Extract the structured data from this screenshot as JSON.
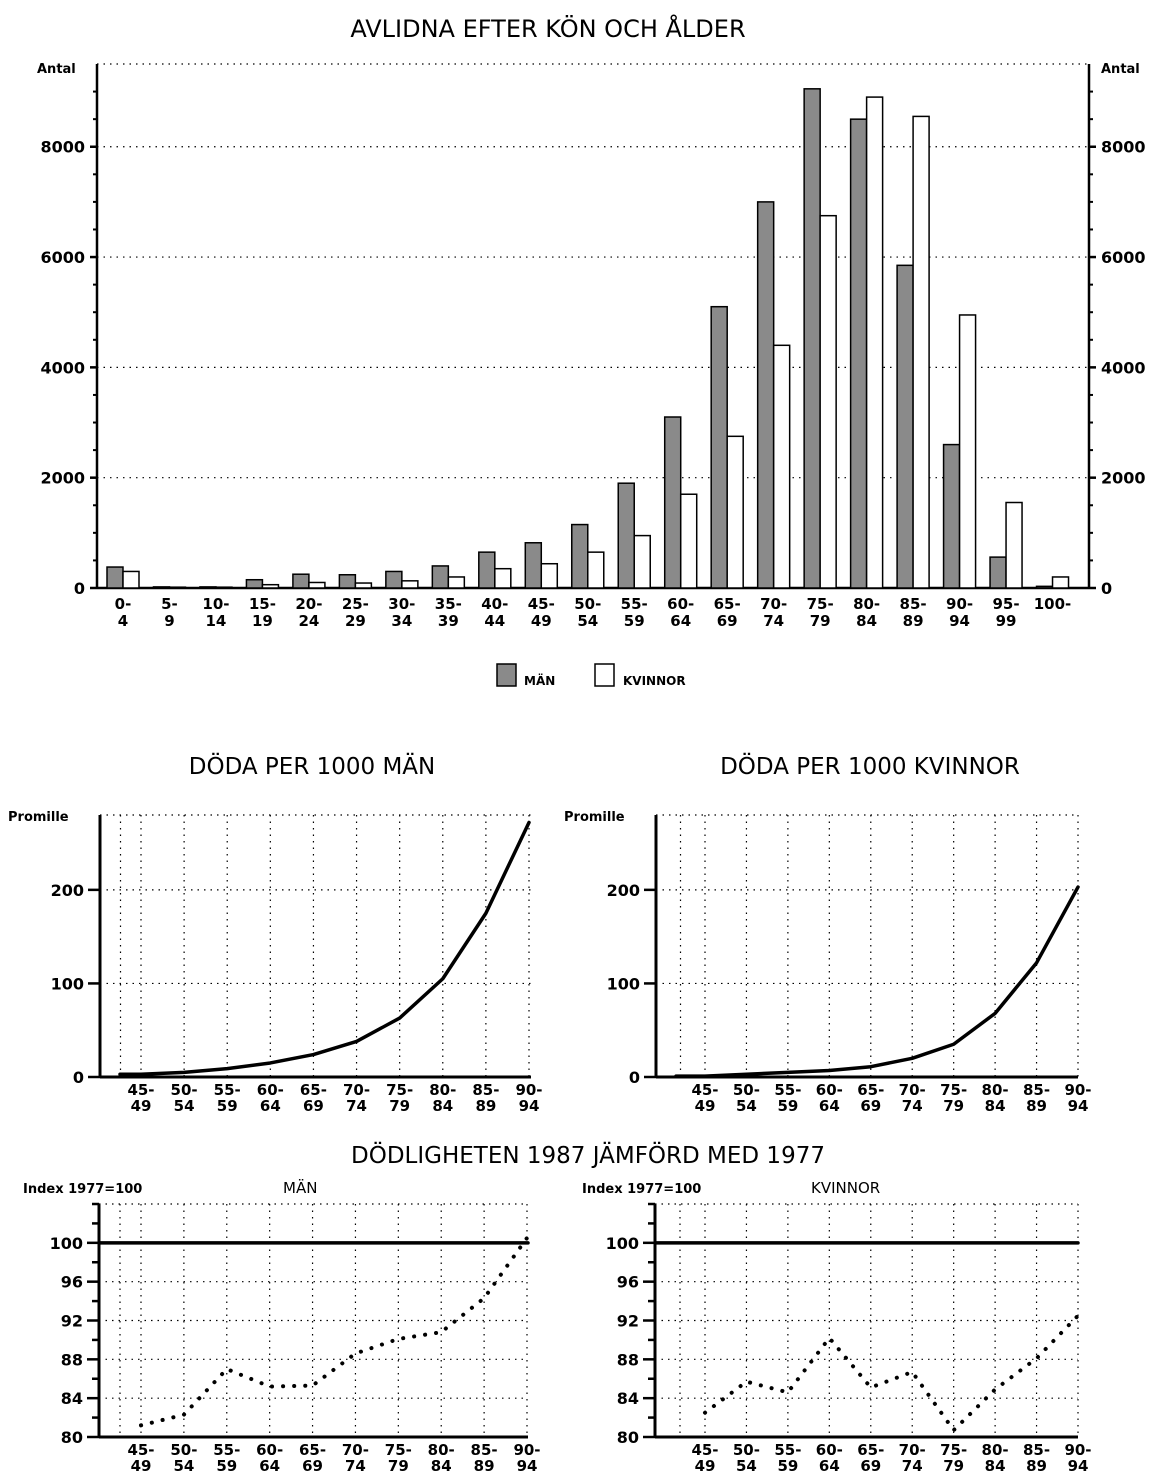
{
  "chart_data": [
    {
      "type": "bar",
      "title": "AVLIDNA EFTER KÖN OCH ÅLDER",
      "ylabel_left": "Antal",
      "ylabel_right": "Antal",
      "ylim": [
        0,
        9500
      ],
      "yticks": [
        0,
        2000,
        4000,
        6000,
        8000
      ],
      "grid": true,
      "legend_position": "bottom",
      "categories": [
        [
          "0-",
          "4"
        ],
        [
          "5-",
          "9"
        ],
        [
          "10-",
          "14"
        ],
        [
          "15-",
          "19"
        ],
        [
          "20-",
          "24"
        ],
        [
          "25-",
          "29"
        ],
        [
          "30-",
          "34"
        ],
        [
          "35-",
          "39"
        ],
        [
          "40-",
          "44"
        ],
        [
          "45-",
          "49"
        ],
        [
          "50-",
          "54"
        ],
        [
          "55-",
          "59"
        ],
        [
          "60-",
          "64"
        ],
        [
          "65-",
          "69"
        ],
        [
          "70-",
          "74"
        ],
        [
          "75-",
          "79"
        ],
        [
          "80-",
          "84"
        ],
        [
          "85-",
          "89"
        ],
        [
          "90-",
          "94"
        ],
        [
          "95-",
          "99"
        ],
        [
          "100-",
          ""
        ]
      ],
      "series": [
        {
          "name": "MÄN",
          "fill": "#8a8a8a",
          "values": [
            380,
            20,
            20,
            150,
            250,
            240,
            300,
            400,
            650,
            820,
            1150,
            1900,
            3100,
            5100,
            7000,
            9050,
            8500,
            5850,
            2600,
            560,
            30
          ]
        },
        {
          "name": "KVINNOR",
          "fill": "#ffffff",
          "values": [
            300,
            15,
            15,
            60,
            100,
            90,
            130,
            200,
            350,
            440,
            650,
            950,
            1700,
            2750,
            4400,
            6750,
            8900,
            8550,
            4950,
            1550,
            200
          ]
        }
      ]
    },
    {
      "type": "line",
      "title": "DÖDA PER 1000 MÄN",
      "ylabel": "Promille",
      "ylim": [
        0,
        280
      ],
      "yticks": [
        0,
        100,
        200
      ],
      "grid": true,
      "categories": [
        [
          "45-",
          "49"
        ],
        [
          "50-",
          "54"
        ],
        [
          "55-",
          "59"
        ],
        [
          "60-",
          "64"
        ],
        [
          "65-",
          "69"
        ],
        [
          "70-",
          "74"
        ],
        [
          "75-",
          "79"
        ],
        [
          "80-",
          "84"
        ],
        [
          "85-",
          "89"
        ],
        [
          "90-",
          "94"
        ]
      ],
      "series": [
        {
          "values": [
            3,
            5,
            9,
            15,
            24,
            38,
            63,
            105,
            175,
            272
          ]
        }
      ]
    },
    {
      "type": "line",
      "title": "DÖDA PER 1000 KVINNOR",
      "ylabel": "Promille",
      "ylim": [
        0,
        280
      ],
      "yticks": [
        0,
        100,
        200
      ],
      "grid": true,
      "categories": [
        [
          "45-",
          "49"
        ],
        [
          "50-",
          "54"
        ],
        [
          "55-",
          "59"
        ],
        [
          "60-",
          "64"
        ],
        [
          "65-",
          "69"
        ],
        [
          "70-",
          "74"
        ],
        [
          "75-",
          "79"
        ],
        [
          "80-",
          "84"
        ],
        [
          "85-",
          "89"
        ],
        [
          "90-",
          "94"
        ]
      ],
      "series": [
        {
          "values": [
            1,
            3,
            5,
            7,
            11,
            20,
            35,
            68,
            122,
            203
          ]
        }
      ]
    },
    {
      "type": "line",
      "group_title": "DÖDLIGHETEN 1987 JÄMFÖRD MED 1977",
      "ylabel": "Index 1977=100",
      "panel_label": "MÄN",
      "ylim": [
        80,
        104
      ],
      "yticks": [
        80,
        84,
        88,
        92,
        96,
        100
      ],
      "grid": true,
      "categories": [
        [
          "45-",
          "49"
        ],
        [
          "50-",
          "54"
        ],
        [
          "55-",
          "59"
        ],
        [
          "60-",
          "64"
        ],
        [
          "65-",
          "69"
        ],
        [
          "70-",
          "74"
        ],
        [
          "75-",
          "79"
        ],
        [
          "80-",
          "84"
        ],
        [
          "85-",
          "89"
        ],
        [
          "90-",
          "94"
        ]
      ],
      "series": [
        {
          "style": "solid",
          "values": [
            100,
            100,
            100,
            100,
            100,
            100,
            100,
            100,
            100,
            100
          ]
        },
        {
          "style": "dotted",
          "values": [
            81.2,
            82.3,
            87.0,
            85.2,
            85.3,
            88.6,
            90.1,
            90.8,
            94.3,
            100.5
          ]
        }
      ]
    },
    {
      "type": "line",
      "ylabel": "Index 1977=100",
      "panel_label": "KVINNOR",
      "ylim": [
        80,
        104
      ],
      "yticks": [
        80,
        84,
        88,
        92,
        96,
        100
      ],
      "grid": true,
      "categories": [
        [
          "45-",
          "49"
        ],
        [
          "50-",
          "54"
        ],
        [
          "55-",
          "59"
        ],
        [
          "60-",
          "64"
        ],
        [
          "65-",
          "69"
        ],
        [
          "70-",
          "74"
        ],
        [
          "75-",
          "79"
        ],
        [
          "80-",
          "84"
        ],
        [
          "85-",
          "89"
        ],
        [
          "90-",
          "94"
        ]
      ],
      "series": [
        {
          "style": "solid",
          "values": [
            100,
            100,
            100,
            100,
            100,
            100,
            100,
            100,
            100,
            100
          ]
        },
        {
          "style": "dotted",
          "values": [
            82.5,
            85.7,
            84.6,
            90.2,
            85.1,
            86.7,
            80.7,
            84.9,
            88.1,
            92.5
          ]
        }
      ]
    }
  ]
}
